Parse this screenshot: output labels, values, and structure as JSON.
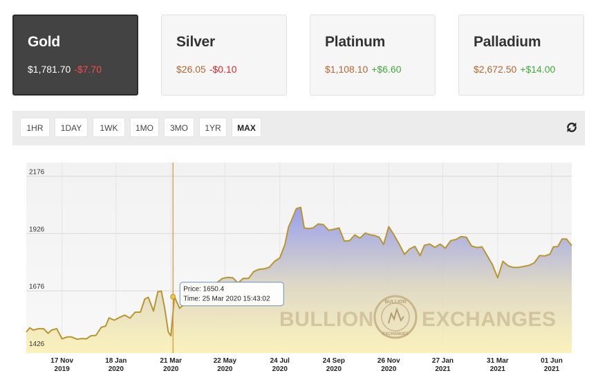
{
  "metals": [
    {
      "name": "Gold",
      "price": "$1,781.70",
      "change": "-$7.70",
      "direction": "down",
      "active": true
    },
    {
      "name": "Silver",
      "price": "$26.05",
      "change": "-$0.10",
      "direction": "down",
      "active": false
    },
    {
      "name": "Platinum",
      "price": "$1,108.10",
      "change": "+$6.60",
      "direction": "up",
      "active": false
    },
    {
      "name": "Palladium",
      "price": "$2,672.50",
      "change": "+$14.00",
      "direction": "up",
      "active": false
    }
  ],
  "ranges": [
    "1HR",
    "1DAY",
    "1WK",
    "1MO",
    "3MO",
    "1YR",
    "MAX"
  ],
  "selected_range": "MAX",
  "refresh_icon": "refresh-icon",
  "colors": {
    "line": "#b8962e",
    "active_card": "#434343",
    "down": "#e02626",
    "up": "#3fae36",
    "price": "#b5652f"
  },
  "watermark": {
    "left": "BULLION",
    "right": "EXCHANGES",
    "seal_top": "BULLION",
    "seal_bottom": "EXCHANGES"
  },
  "tooltip": {
    "price_line": "Price: 1650.4",
    "time_line": "Time: 25 Mar 2020 15:43:02"
  },
  "chart_data": {
    "type": "area",
    "y_ticks": [
      1426,
      1676,
      1926,
      2176
    ],
    "ylim": [
      1405,
      2235
    ],
    "x_ticks": [
      {
        "date": "2019-11-17",
        "label1": "17 Nov",
        "label2": "2019"
      },
      {
        "date": "2020-01-18",
        "label1": "18 Jan",
        "label2": "2020"
      },
      {
        "date": "2020-03-21",
        "label1": "21 Mar",
        "label2": "2020"
      },
      {
        "date": "2020-05-22",
        "label1": "22 May",
        "label2": "2020"
      },
      {
        "date": "2020-07-24",
        "label1": "24 Jul",
        "label2": "2020"
      },
      {
        "date": "2020-09-24",
        "label1": "24 Sep",
        "label2": "2020"
      },
      {
        "date": "2020-11-26",
        "label1": "26 Nov",
        "label2": "2020"
      },
      {
        "date": "2021-01-27",
        "label1": "27 Jan",
        "label2": "2021"
      },
      {
        "date": "2021-03-31",
        "label1": "31 Mar",
        "label2": "2021"
      },
      {
        "date": "2021-06-01",
        "label1": "01 Jun",
        "label2": "2021"
      }
    ],
    "xlim": [
      "2019-10-07",
      "2021-06-24"
    ],
    "hover": {
      "date": "2020-03-25",
      "price": 1650.4
    },
    "series": [
      {
        "x": [
          "2019-10-07",
          "2019-10-11",
          "2019-10-15",
          "2019-10-21",
          "2019-10-27",
          "2019-11-01",
          "2019-11-05",
          "2019-11-11",
          "2019-11-17",
          "2019-11-23",
          "2019-11-28",
          "2019-12-04",
          "2019-12-10",
          "2019-12-15",
          "2019-12-20",
          "2019-12-26",
          "2020-01-01",
          "2020-01-06",
          "2020-01-10",
          "2020-01-16",
          "2020-01-22",
          "2020-01-28",
          "2020-02-03",
          "2020-02-09",
          "2020-02-15",
          "2020-02-20",
          "2020-02-24",
          "2020-03-01",
          "2020-03-06",
          "2020-03-10",
          "2020-03-14",
          "2020-03-18",
          "2020-03-21",
          "2020-03-25",
          "2020-03-31",
          "2020-04-06",
          "2020-04-12",
          "2020-04-16",
          "2020-04-22",
          "2020-04-28",
          "2020-05-04",
          "2020-05-10",
          "2020-05-14",
          "2020-05-19",
          "2020-05-25",
          "2020-05-31",
          "2020-06-06",
          "2020-06-12",
          "2020-06-18",
          "2020-06-24",
          "2020-06-30",
          "2020-07-06",
          "2020-07-12",
          "2020-07-18",
          "2020-07-24",
          "2020-07-30",
          "2020-08-03",
          "2020-08-06",
          "2020-08-12",
          "2020-08-17",
          "2020-08-21",
          "2020-08-26",
          "2020-08-31",
          "2020-09-06",
          "2020-09-12",
          "2020-09-18",
          "2020-09-24",
          "2020-09-30",
          "2020-10-06",
          "2020-10-12",
          "2020-10-18",
          "2020-10-24",
          "2020-10-30",
          "2020-11-05",
          "2020-11-09",
          "2020-11-15",
          "2020-11-20",
          "2020-11-26",
          "2020-12-02",
          "2020-12-08",
          "2020-12-14",
          "2020-12-20",
          "2020-12-26",
          "2021-01-01",
          "2021-01-06",
          "2021-01-12",
          "2021-01-18",
          "2021-01-24",
          "2021-01-30",
          "2021-02-05",
          "2021-02-11",
          "2021-02-17",
          "2021-02-23",
          "2021-03-01",
          "2021-03-07",
          "2021-03-13",
          "2021-03-19",
          "2021-03-25",
          "2021-03-31",
          "2021-04-06",
          "2021-04-12",
          "2021-04-18",
          "2021-04-24",
          "2021-04-30",
          "2021-05-06",
          "2021-05-12",
          "2021-05-18",
          "2021-05-24",
          "2021-05-30",
          "2021-06-03",
          "2021-06-08",
          "2021-06-13",
          "2021-06-18",
          "2021-06-24"
        ],
        "y": [
          1496,
          1515,
          1505,
          1511,
          1511,
          1491,
          1505,
          1511,
          1467,
          1475,
          1475,
          1465,
          1468,
          1467,
          1480,
          1482,
          1517,
          1522,
          1558,
          1548,
          1560,
          1570,
          1557,
          1583,
          1583,
          1640,
          1648,
          1588,
          1672,
          1675,
          1598,
          1497,
          1480,
          1650.4,
          1600,
          1620,
          1675,
          1683,
          1710,
          1693,
          1700,
          1705,
          1715,
          1730,
          1735,
          1733,
          1710,
          1730,
          1730,
          1760,
          1770,
          1772,
          1779,
          1805,
          1820,
          1880,
          1955,
          1980,
          2035,
          2040,
          1950,
          1948,
          1950,
          1968,
          1965,
          1940,
          1945,
          1950,
          1893,
          1895,
          1920,
          1906,
          1928,
          1920,
          1918,
          1910,
          1878,
          1956,
          1920,
          1880,
          1835,
          1859,
          1870,
          1830,
          1875,
          1880,
          1866,
          1880,
          1862,
          1895,
          1900,
          1913,
          1910,
          1872,
          1865,
          1868,
          1830,
          1790,
          1733,
          1805,
          1785,
          1778,
          1778,
          1783,
          1787,
          1798,
          1830,
          1828,
          1836,
          1868,
          1869,
          1902,
          1902,
          1873
        ]
      }
    ]
  }
}
